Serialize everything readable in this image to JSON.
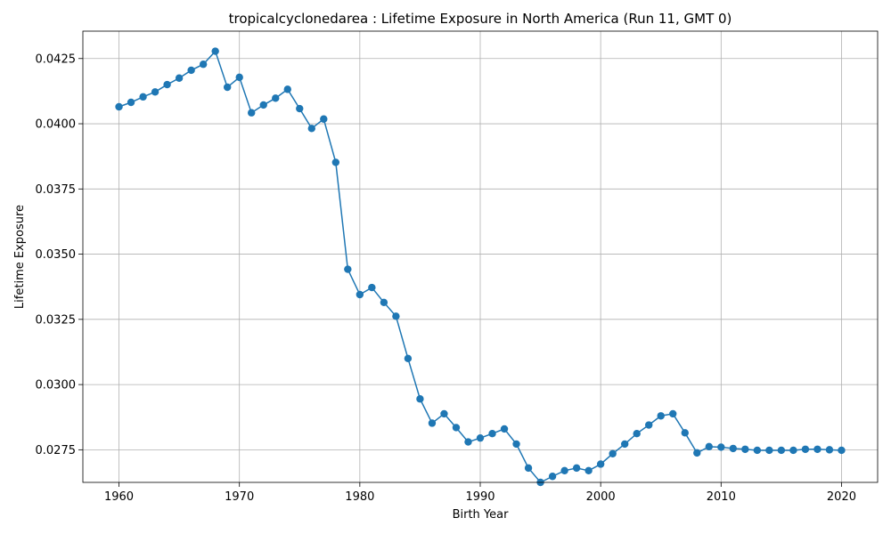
{
  "chart_data": {
    "type": "line",
    "title": "tropicalcyclonedarea : Lifetime Exposure in North America (Run 11, GMT 0)",
    "xlabel": "Birth Year",
    "ylabel": "Lifetime Exposure",
    "xlim": [
      1957,
      2023
    ],
    "ylim": [
      0.02625,
      0.04355
    ],
    "grid": true,
    "x_ticks": [
      1960,
      1970,
      1980,
      1990,
      2000,
      2010,
      2020
    ],
    "y_ticks": [
      0.0275,
      0.03,
      0.0325,
      0.035,
      0.0375,
      0.04,
      0.0425
    ],
    "y_tick_labels": [
      "0.0275",
      "0.0300",
      "0.0325",
      "0.0350",
      "0.0375",
      "0.0400",
      "0.0425"
    ],
    "marker": "circle",
    "color": "#1f77b4",
    "series": [
      {
        "x": [
          1960,
          1961,
          1962,
          1963,
          1964,
          1965,
          1966,
          1967,
          1968,
          1969,
          1970,
          1971,
          1972,
          1973,
          1974,
          1975,
          1976,
          1977,
          1978,
          1979,
          1980,
          1981,
          1982,
          1983,
          1984,
          1985,
          1986,
          1987,
          1988,
          1989,
          1990,
          1991,
          1992,
          1993,
          1994,
          1995,
          1996,
          1997,
          1998,
          1999,
          2000,
          2001,
          2002,
          2003,
          2004,
          2005,
          2006,
          2007,
          2008,
          2009,
          2010,
          2011,
          2012,
          2013,
          2014,
          2015,
          2016,
          2017,
          2018,
          2019,
          2020
        ],
        "values": [
          0.04065,
          0.04082,
          0.04103,
          0.04122,
          0.0415,
          0.04175,
          0.04205,
          0.04228,
          0.04278,
          0.0414,
          0.04178,
          0.04042,
          0.04072,
          0.04098,
          0.04132,
          0.04058,
          0.03982,
          0.04018,
          0.03852,
          0.03442,
          0.03345,
          0.03372,
          0.03315,
          0.03262,
          0.031,
          0.02945,
          0.02852,
          0.02888,
          0.02835,
          0.0278,
          0.02795,
          0.02812,
          0.0283,
          0.02772,
          0.0268,
          0.02625,
          0.02648,
          0.0267,
          0.0268,
          0.0267,
          0.02695,
          0.02735,
          0.02772,
          0.02812,
          0.02845,
          0.0288,
          0.02888,
          0.02815,
          0.02738,
          0.02762,
          0.0276,
          0.02755,
          0.02752,
          0.02748,
          0.02748,
          0.02748,
          0.02748,
          0.02752,
          0.02752,
          0.0275,
          0.02748
        ]
      }
    ]
  }
}
